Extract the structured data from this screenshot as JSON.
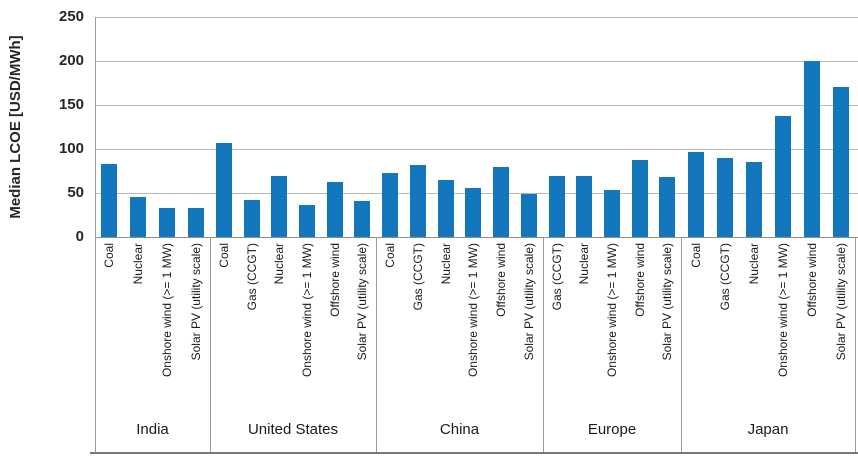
{
  "chart_data": {
    "type": "bar",
    "title": "",
    "ylabel": "Median LCOE [USD/MWh]",
    "xlabel": "",
    "ylim": [
      0,
      250
    ],
    "yticks": [
      0,
      50,
      100,
      150,
      200,
      250
    ],
    "grid": "horizontal",
    "legend": "none",
    "bar_color": "#1277BD",
    "groups": [
      {
        "label": "India",
        "bars": [
          {
            "label": "Coal",
            "value": 83
          },
          {
            "label": "Nuclear",
            "value": 46
          },
          {
            "label": "Onshore wind (>= 1 MW)",
            "value": 33
          },
          {
            "label": "Solar PV (utility scale)",
            "value": 33
          }
        ]
      },
      {
        "label": "United States",
        "bars": [
          {
            "label": "Coal",
            "value": 107
          },
          {
            "label": "Gas (CCGT)",
            "value": 42
          },
          {
            "label": "Nuclear",
            "value": 69
          },
          {
            "label": "Onshore wind (>= 1 MW)",
            "value": 36
          },
          {
            "label": "Offshore wind",
            "value": 63
          },
          {
            "label": "Solar PV (utility scale)",
            "value": 41
          }
        ]
      },
      {
        "label": "China",
        "bars": [
          {
            "label": "Coal",
            "value": 73
          },
          {
            "label": "Gas (CCGT)",
            "value": 82
          },
          {
            "label": "Nuclear",
            "value": 65
          },
          {
            "label": "Onshore wind (>= 1 MW)",
            "value": 56
          },
          {
            "label": "Offshore wind",
            "value": 80
          },
          {
            "label": "Solar PV (utility scale)",
            "value": 49
          }
        ]
      },
      {
        "label": "Europe",
        "bars": [
          {
            "label": "Gas (CCGT)",
            "value": 69
          },
          {
            "label": "Nuclear",
            "value": 69
          },
          {
            "label": "Onshore wind (>= 1 MW)",
            "value": 53
          },
          {
            "label": "Offshore wind",
            "value": 88
          },
          {
            "label": "Solar PV (utility scale)",
            "value": 68
          }
        ]
      },
      {
        "label": "Japan",
        "bars": [
          {
            "label": "Coal",
            "value": 97
          },
          {
            "label": "Gas (CCGT)",
            "value": 90
          },
          {
            "label": "Nuclear",
            "value": 85
          },
          {
            "label": "Onshore wind (>= 1 MW)",
            "value": 138
          },
          {
            "label": "Offshore wind",
            "value": 200
          },
          {
            "label": "Solar PV (utility scale)",
            "value": 170
          }
        ]
      }
    ]
  }
}
